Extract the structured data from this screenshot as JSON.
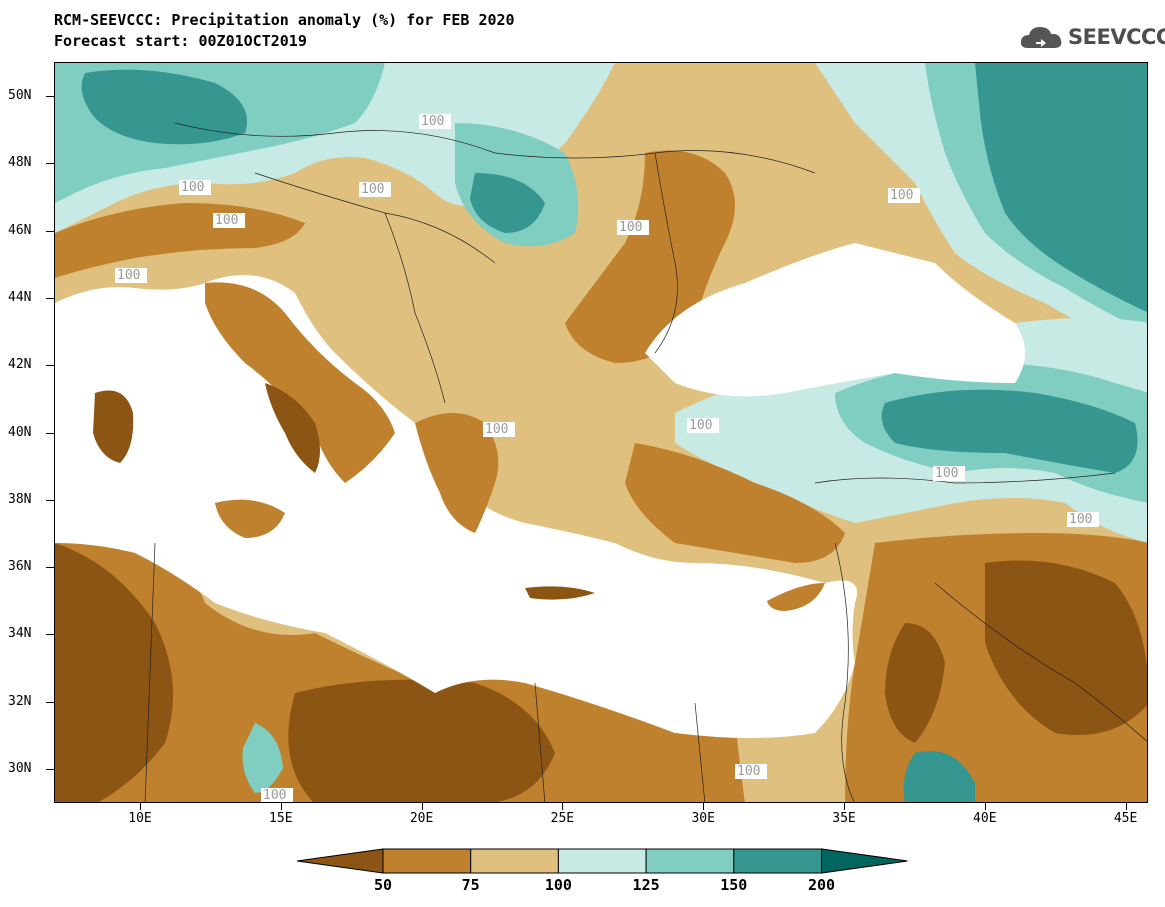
{
  "header": {
    "title_line1": "RCM-SEEVCCC: Precipitation anomaly (%) for FEB 2020",
    "title_line2": "Forecast start: 00Z01OCT2019",
    "logo_text": "SEEVCCC"
  },
  "map": {
    "latitude_labels": [
      "50N",
      "48N",
      "46N",
      "44N",
      "42N",
      "40N",
      "38N",
      "36N",
      "34N",
      "32N",
      "30N"
    ],
    "longitude_labels": [
      "10E",
      "15E",
      "20E",
      "25E",
      "30E",
      "35E",
      "40E",
      "45E"
    ],
    "contour_label": "100",
    "contour_label_count": 13,
    "land_colors": {
      "below_50": "#8c5514",
      "50_75": "#bf812d",
      "75_100": "#dfc07e",
      "100_125": "#c7eae5",
      "125_150": "#80cdc1",
      "150_200": "#35978f",
      "above_200": "#01665e"
    },
    "sea_color": "#ffffff"
  },
  "colorbar": {
    "ticks": [
      "50",
      "75",
      "100",
      "125",
      "150",
      "200"
    ],
    "colors": [
      "#8c5514",
      "#bf812d",
      "#dfc07e",
      "#c7eae5",
      "#80cdc1",
      "#35978f",
      "#01665e"
    ]
  }
}
